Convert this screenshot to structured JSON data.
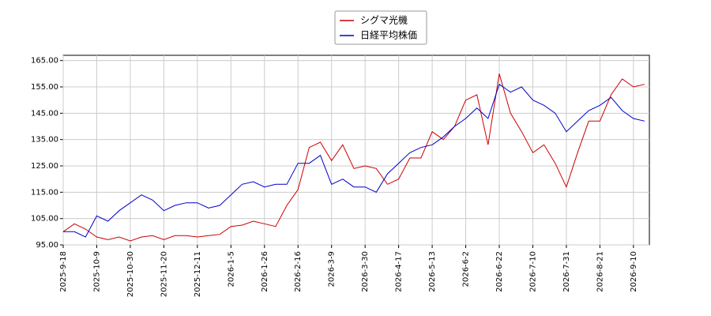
{
  "chart_data": {
    "type": "line",
    "x": [
      "2025-9-18",
      null,
      null,
      "2025-10-9",
      null,
      null,
      "2025-10-30",
      null,
      null,
      "2025-11-20",
      null,
      null,
      "2025-12-11",
      null,
      null,
      "2026-1-5",
      null,
      null,
      "2026-1-26",
      null,
      null,
      "2026-2-16",
      null,
      null,
      "2026-3-9",
      null,
      null,
      "2026-3-30",
      null,
      null,
      "2026-4-17",
      null,
      null,
      "2026-5-13",
      null,
      null,
      "2026-6-2",
      null,
      null,
      "2026-6-22",
      null,
      null,
      "2026-7-10",
      null,
      null,
      "2026-7-31",
      null,
      null,
      "2026-8-21",
      null,
      null,
      "2026-9-10",
      null
    ],
    "series": [
      {
        "name": "シグマ光機",
        "color": "#cc0000",
        "values": [
          100,
          103,
          101,
          98,
          97,
          98,
          96.5,
          98,
          98.5,
          97,
          98.5,
          98.5,
          98,
          98.5,
          99,
          102,
          102.5,
          104,
          103,
          102,
          110,
          116,
          132,
          134,
          127,
          133,
          124,
          125,
          124,
          118,
          120,
          128,
          128,
          138,
          135,
          140,
          150,
          152,
          133,
          160,
          145,
          138,
          130,
          133,
          126,
          117,
          130,
          142,
          142,
          152,
          158,
          155,
          156
        ]
      },
      {
        "name": "日経平均株価",
        "color": "#0000cc",
        "values": [
          100,
          100,
          98,
          106,
          104,
          108,
          111,
          114,
          112,
          108,
          110,
          111,
          111,
          109,
          110,
          114,
          118,
          119,
          117,
          118,
          118,
          126,
          126,
          129,
          118,
          120,
          117,
          117,
          115,
          122,
          126,
          130,
          132,
          133,
          136,
          140,
          143,
          147,
          143,
          156,
          153,
          155,
          150,
          148,
          145,
          138,
          142,
          146,
          148,
          151,
          146,
          143,
          142
        ]
      }
    ],
    "ylim": [
      95,
      167
    ],
    "yticks": [
      {
        "value": 95,
        "label": "95.00"
      },
      {
        "value": 105,
        "label": "105.00"
      },
      {
        "value": 115,
        "label": "115.00"
      },
      {
        "value": 125,
        "label": "125.00"
      },
      {
        "value": 135,
        "label": "135.00"
      },
      {
        "value": 145,
        "label": "145.00"
      },
      {
        "value": 155,
        "label": "155.00"
      },
      {
        "value": 165,
        "label": "165.00"
      }
    ],
    "grid": true,
    "legend": "top"
  }
}
